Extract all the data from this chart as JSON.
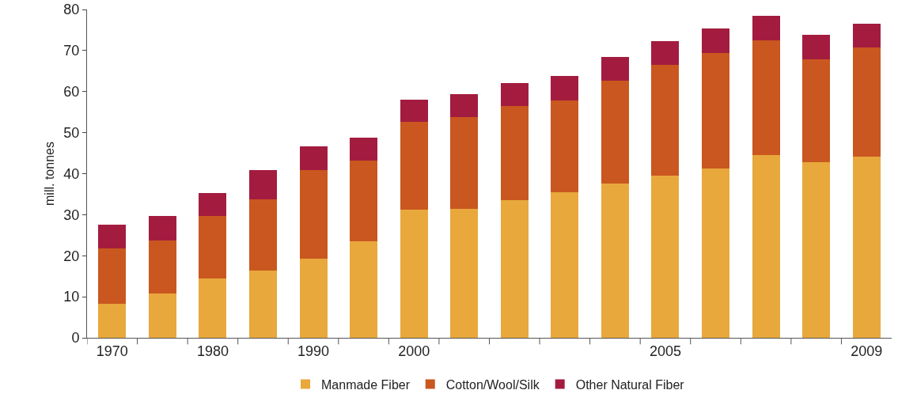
{
  "chart_data": {
    "type": "bar",
    "stacked": true,
    "ylabel": "mill. tonnes",
    "categories": [
      "1970",
      null,
      "1980",
      null,
      "1990",
      null,
      "2000",
      null,
      null,
      null,
      null,
      "2005",
      null,
      null,
      null,
      "2009"
    ],
    "series": [
      {
        "name": "Manmade Fiber",
        "color": "#e8a83c",
        "values": [
          8.3,
          10.8,
          14.4,
          16.3,
          19.2,
          23.5,
          31.2,
          31.5,
          33.5,
          35.4,
          37.5,
          39.6,
          41.3,
          44.6,
          42.7,
          44.2
        ]
      },
      {
        "name": "Cotton/Wool/Silk",
        "color": "#c9571f",
        "values": [
          13.4,
          13.0,
          15.2,
          17.5,
          21.6,
          19.6,
          21.5,
          22.2,
          23.0,
          22.5,
          25.2,
          26.9,
          28.1,
          27.9,
          25.2,
          26.6
        ]
      },
      {
        "name": "Other Natural Fiber",
        "color": "#a31c3f",
        "values": [
          5.8,
          5.8,
          5.6,
          7.0,
          5.9,
          5.7,
          5.4,
          5.7,
          5.6,
          5.9,
          5.8,
          5.8,
          6.0,
          6.0,
          5.9,
          5.7
        ]
      }
    ],
    "ylim": [
      0,
      80
    ],
    "yticks": [
      0,
      10,
      20,
      30,
      40,
      50,
      60,
      70,
      80
    ],
    "grid": false,
    "legend": "bottom"
  }
}
